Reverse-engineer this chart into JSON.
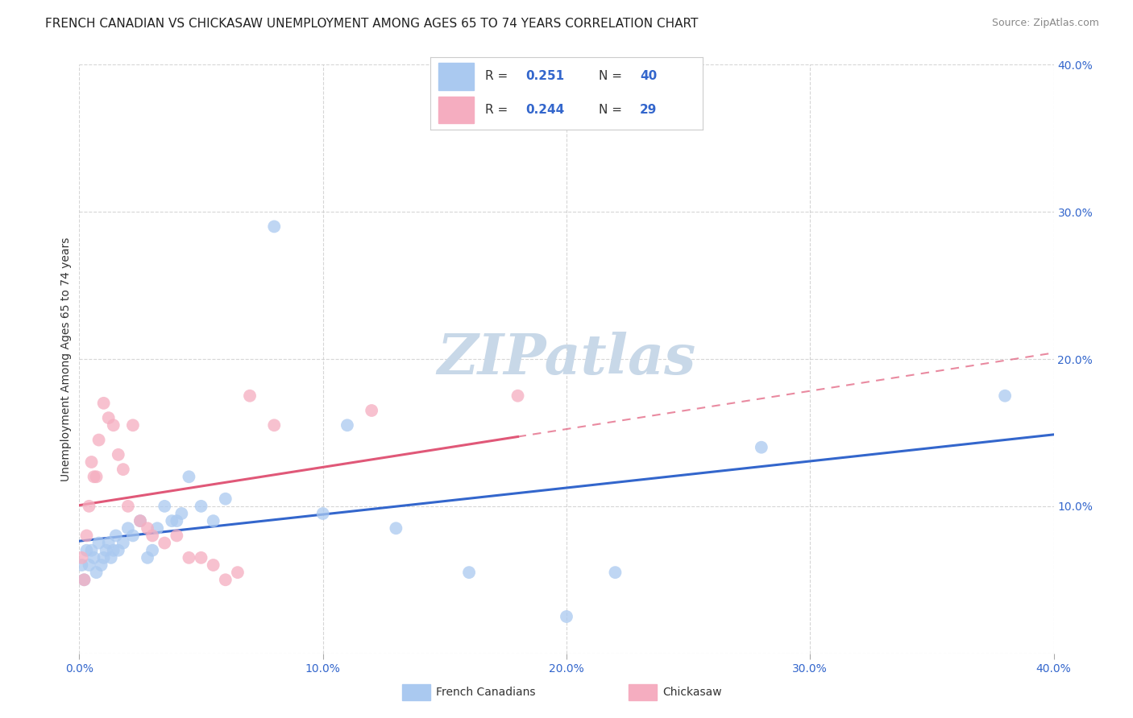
{
  "title": "FRENCH CANADIAN VS CHICKASAW UNEMPLOYMENT AMONG AGES 65 TO 74 YEARS CORRELATION CHART",
  "source": "Source: ZipAtlas.com",
  "ylabel": "Unemployment Among Ages 65 to 74 years",
  "xlim": [
    0.0,
    0.4
  ],
  "ylim": [
    0.0,
    0.4
  ],
  "xticks": [
    0.0,
    0.1,
    0.2,
    0.3,
    0.4
  ],
  "yticks": [
    0.0,
    0.1,
    0.2,
    0.3,
    0.4
  ],
  "xticklabels": [
    "0.0%",
    "10.0%",
    "20.0%",
    "30.0%",
    "40.0%"
  ],
  "yticklabels": [
    "",
    "10.0%",
    "20.0%",
    "30.0%",
    "40.0%"
  ],
  "legend_entries": [
    {
      "label": "French Canadians",
      "R": "0.251",
      "N": "40",
      "color": "#aac9f0",
      "line_color": "#3366cc"
    },
    {
      "label": "Chickasaw",
      "R": "0.244",
      "N": "29",
      "color": "#f5adc0",
      "line_color": "#e05878"
    }
  ],
  "watermark": "ZIPatlas",
  "watermark_color": "#c8d8e8",
  "fc_x": [
    0.001,
    0.002,
    0.003,
    0.004,
    0.005,
    0.006,
    0.007,
    0.008,
    0.009,
    0.01,
    0.011,
    0.012,
    0.013,
    0.014,
    0.015,
    0.016,
    0.018,
    0.02,
    0.022,
    0.025,
    0.028,
    0.03,
    0.032,
    0.035,
    0.038,
    0.04,
    0.042,
    0.045,
    0.05,
    0.055,
    0.06,
    0.08,
    0.1,
    0.11,
    0.13,
    0.16,
    0.2,
    0.22,
    0.28,
    0.38
  ],
  "fc_y": [
    0.06,
    0.05,
    0.07,
    0.06,
    0.07,
    0.065,
    0.055,
    0.075,
    0.06,
    0.065,
    0.07,
    0.075,
    0.065,
    0.07,
    0.08,
    0.07,
    0.075,
    0.085,
    0.08,
    0.09,
    0.065,
    0.07,
    0.085,
    0.1,
    0.09,
    0.09,
    0.095,
    0.12,
    0.1,
    0.09,
    0.105,
    0.29,
    0.095,
    0.155,
    0.085,
    0.055,
    0.025,
    0.055,
    0.14,
    0.175
  ],
  "ck_x": [
    0.001,
    0.002,
    0.003,
    0.004,
    0.005,
    0.006,
    0.007,
    0.008,
    0.01,
    0.012,
    0.014,
    0.016,
    0.018,
    0.02,
    0.022,
    0.025,
    0.028,
    0.03,
    0.035,
    0.04,
    0.045,
    0.05,
    0.055,
    0.06,
    0.065,
    0.07,
    0.08,
    0.12,
    0.18
  ],
  "ck_y": [
    0.065,
    0.05,
    0.08,
    0.1,
    0.13,
    0.12,
    0.12,
    0.145,
    0.17,
    0.16,
    0.155,
    0.135,
    0.125,
    0.1,
    0.155,
    0.09,
    0.085,
    0.08,
    0.075,
    0.08,
    0.065,
    0.065,
    0.06,
    0.05,
    0.055,
    0.175,
    0.155,
    0.165,
    0.175
  ],
  "background_color": "#ffffff",
  "grid_color": "#cccccc",
  "title_fontsize": 11,
  "tick_fontsize": 10,
  "legend_R_N_color": "#3366cc"
}
